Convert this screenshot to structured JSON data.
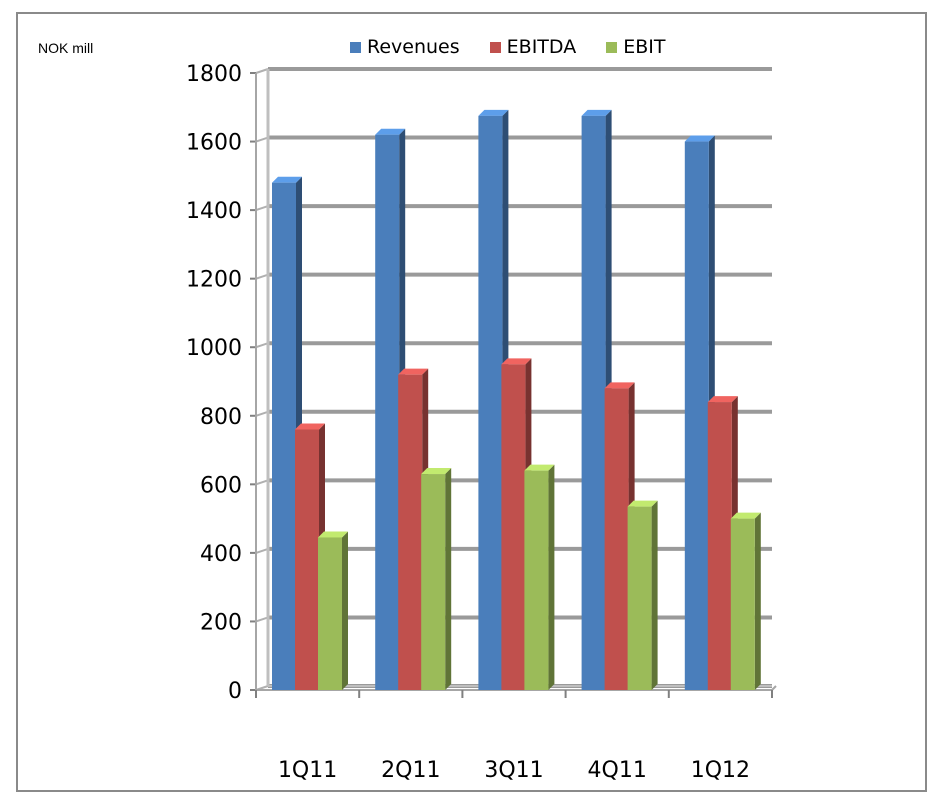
{
  "chart_data": {
    "type": "bar",
    "unit_label": "NOK mill",
    "categories": [
      "1Q11",
      "2Q11",
      "3Q11",
      "4Q11",
      "1Q12"
    ],
    "series": [
      {
        "name": "Revenues",
        "color": "#4a7ebb",
        "values": [
          1480,
          1620,
          1675,
          1675,
          1600
        ]
      },
      {
        "name": "EBITDA",
        "color": "#c0504d",
        "values": [
          760,
          920,
          950,
          880,
          840
        ]
      },
      {
        "name": "EBIT",
        "color": "#9bbb59",
        "values": [
          445,
          630,
          640,
          535,
          500
        ]
      }
    ],
    "ylim": [
      0,
      1800
    ],
    "yticks": [
      "0",
      "200",
      "400",
      "600",
      "800",
      "1000",
      "1200",
      "1400",
      "1600",
      "1800"
    ],
    "grid": true,
    "legend_position": "top"
  }
}
